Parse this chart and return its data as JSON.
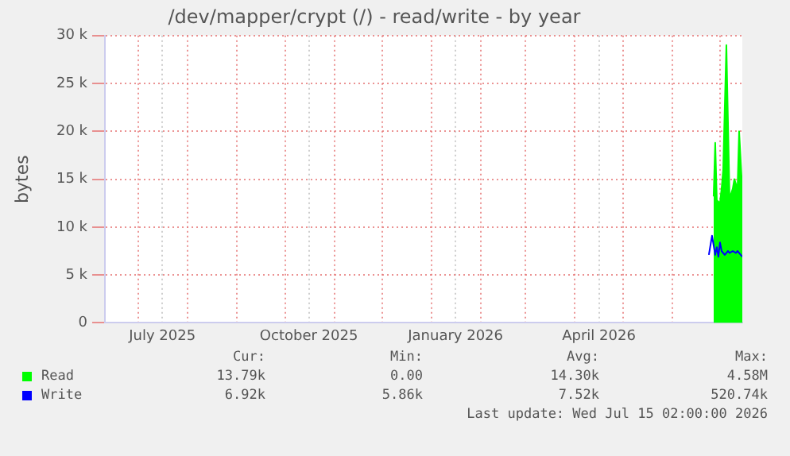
{
  "chart_data": {
    "type": "area",
    "title": "/dev/mapper/crypt (/) - read/write - by year",
    "ylabel": "bytes",
    "xlim": [
      "2025-06-10",
      "2026-07-15"
    ],
    "xticks": [
      {
        "value": "2025-07-01",
        "label": null
      },
      {
        "value": "2025-07-16",
        "label": "July 2025"
      },
      {
        "value": "2025-08-01",
        "label": null
      },
      {
        "value": "2025-09-01",
        "label": null
      },
      {
        "value": "2025-10-01",
        "label": null
      },
      {
        "value": "2025-10-16",
        "label": "October 2025"
      },
      {
        "value": "2025-11-01",
        "label": null
      },
      {
        "value": "2025-12-01",
        "label": null
      },
      {
        "value": "2026-01-01",
        "label": null
      },
      {
        "value": "2026-01-16",
        "label": "January 2026"
      },
      {
        "value": "2026-02-01",
        "label": null
      },
      {
        "value": "2026-03-01",
        "label": null
      },
      {
        "value": "2026-04-01",
        "label": null
      },
      {
        "value": "2026-04-16",
        "label": "April 2026"
      },
      {
        "value": "2026-05-01",
        "label": null
      },
      {
        "value": "2026-06-01",
        "label": null
      },
      {
        "value": "2026-07-01",
        "label": null
      }
    ],
    "ylim": [
      0,
      30000
    ],
    "yticks": [
      {
        "value": 0,
        "label": "0"
      },
      {
        "value": 5000,
        "label": "5 k"
      },
      {
        "value": 10000,
        "label": "10 k"
      },
      {
        "value": 15000,
        "label": "15 k"
      },
      {
        "value": 20000,
        "label": "20 k"
      },
      {
        "value": 25000,
        "label": "25 k"
      },
      {
        "value": 30000,
        "label": "30 k"
      }
    ],
    "grid": true,
    "legend": "bottom left",
    "series": [
      {
        "name": "Read",
        "color": "#00ff00",
        "x": [
          "2026-06-27",
          "2026-06-28",
          "2026-06-29",
          "2026-07-01",
          "2026-07-02",
          "2026-07-03",
          "2026-07-05",
          "2026-07-07",
          "2026-07-09",
          "2026-07-10",
          "2026-07-12",
          "2026-07-13",
          "2026-07-15"
        ],
        "values": [
          13200,
          18800,
          12800,
          12500,
          14000,
          16000,
          29000,
          13000,
          14000,
          15000,
          14000,
          20000,
          13800
        ]
      },
      {
        "name": "Write",
        "type": "line",
        "color": "#0000ff",
        "x": [
          "2026-06-24",
          "2026-06-26",
          "2026-06-28",
          "2026-06-29",
          "2026-06-30",
          "2026-07-01",
          "2026-07-02",
          "2026-07-04",
          "2026-07-06",
          "2026-07-07",
          "2026-07-09",
          "2026-07-11",
          "2026-07-12",
          "2026-07-15"
        ],
        "values": [
          7100,
          9100,
          7100,
          7900,
          6900,
          8400,
          7500,
          7100,
          7500,
          7300,
          7500,
          7300,
          7500,
          6900
        ]
      }
    ],
    "annotations": [
      "Cur:",
      "Min:",
      "Avg:",
      "Max:",
      "13.79k",
      "0.00",
      "14.30k",
      "4.58M",
      "6.92k",
      "5.86k",
      "7.52k",
      "520.74k",
      "Last update: Wed Jul 15 02:00:00 2026"
    ]
  }
}
